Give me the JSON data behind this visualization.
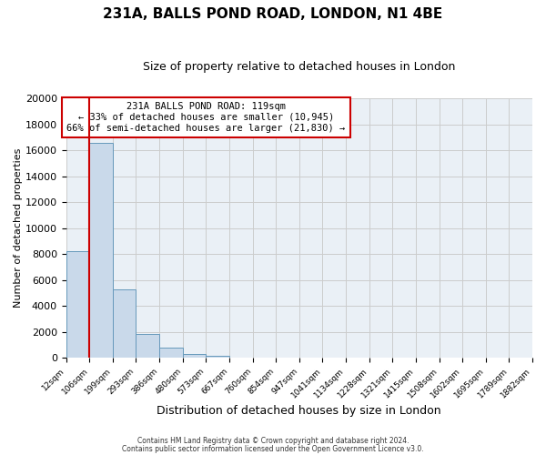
{
  "title": "231A, BALLS POND ROAD, LONDON, N1 4BE",
  "subtitle": "Size of property relative to detached houses in London",
  "xlabel": "Distribution of detached houses by size in London",
  "ylabel": "Number of detached properties",
  "bar_color": "#c9d9ea",
  "bar_edge_color": "#6699bb",
  "grid_color": "#cccccc",
  "bg_color": "#eaf0f6",
  "annotation_box_edge": "#cc0000",
  "vline_color": "#cc0000",
  "bins": [
    "12sqm",
    "106sqm",
    "199sqm",
    "293sqm",
    "386sqm",
    "480sqm",
    "573sqm",
    "667sqm",
    "760sqm",
    "854sqm",
    "947sqm",
    "1041sqm",
    "1134sqm",
    "1228sqm",
    "1321sqm",
    "1415sqm",
    "1508sqm",
    "1602sqm",
    "1695sqm",
    "1789sqm",
    "1882sqm"
  ],
  "values": [
    8200,
    16600,
    5300,
    1800,
    750,
    300,
    150,
    0,
    0,
    0,
    0,
    0,
    0,
    0,
    0,
    0,
    0,
    0,
    0,
    0
  ],
  "ylim": [
    0,
    20000
  ],
  "yticks": [
    0,
    2000,
    4000,
    6000,
    8000,
    10000,
    12000,
    14000,
    16000,
    18000,
    20000
  ],
  "vline_bin_index": 1,
  "annotation_title": "231A BALLS POND ROAD: 119sqm",
  "annotation_line1": "← 33% of detached houses are smaller (10,945)",
  "annotation_line2": "66% of semi-detached houses are larger (21,830) →",
  "footer_line1": "Contains HM Land Registry data © Crown copyright and database right 2024.",
  "footer_line2": "Contains public sector information licensed under the Open Government Licence v3.0."
}
